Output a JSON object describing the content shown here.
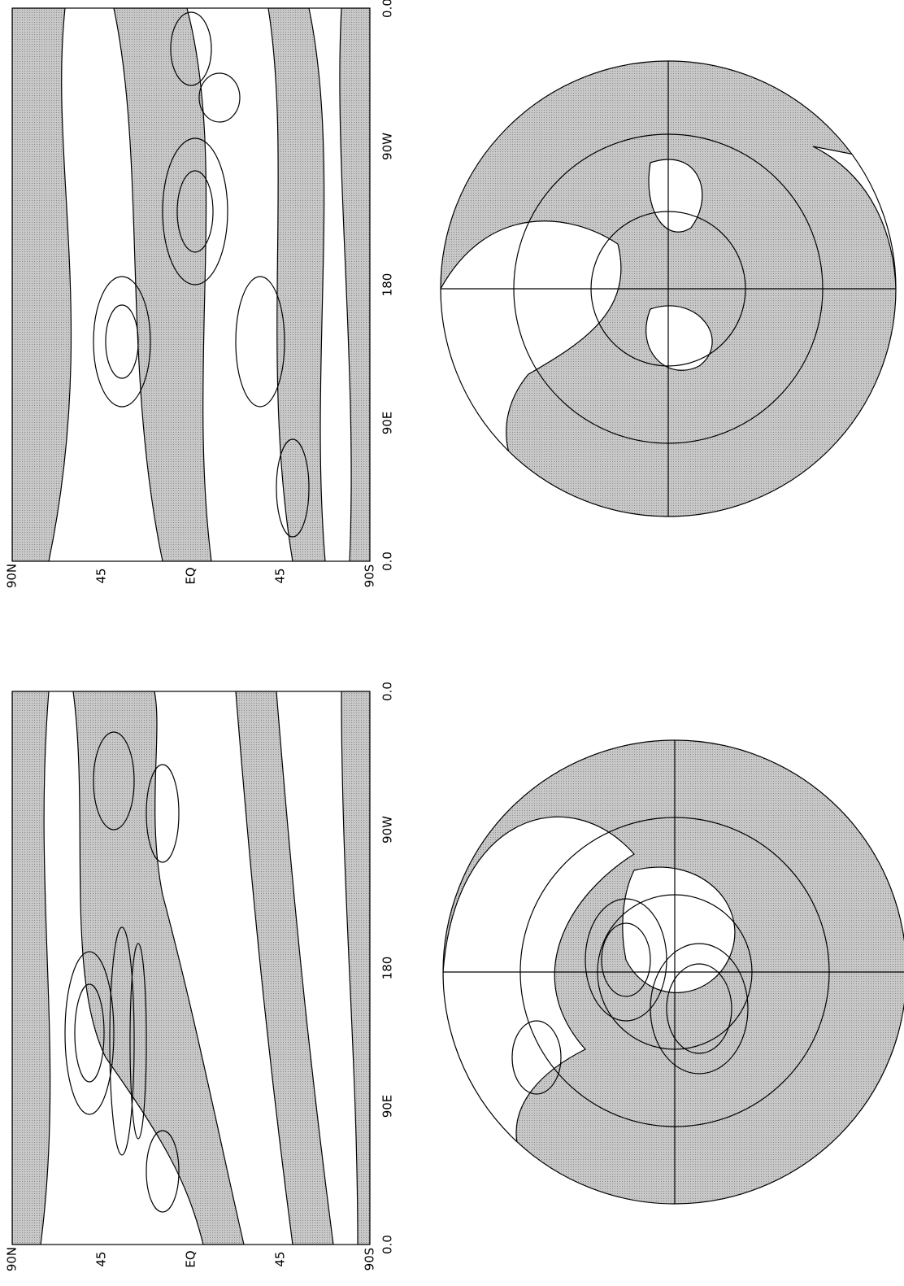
{
  "panels": [
    {
      "latitude_labels": [
        "90N",
        "45",
        "EQ",
        "45",
        "90S"
      ],
      "longitude_labels": [
        "0.0",
        "90E",
        "180",
        "90W",
        "0.0"
      ]
    },
    {
      "latitude_labels": [
        "90N",
        "45",
        "EQ",
        "45",
        "90S"
      ],
      "longitude_labels": [
        "0.0",
        "90E",
        "180",
        "90W",
        "0.0"
      ]
    }
  ]
}
